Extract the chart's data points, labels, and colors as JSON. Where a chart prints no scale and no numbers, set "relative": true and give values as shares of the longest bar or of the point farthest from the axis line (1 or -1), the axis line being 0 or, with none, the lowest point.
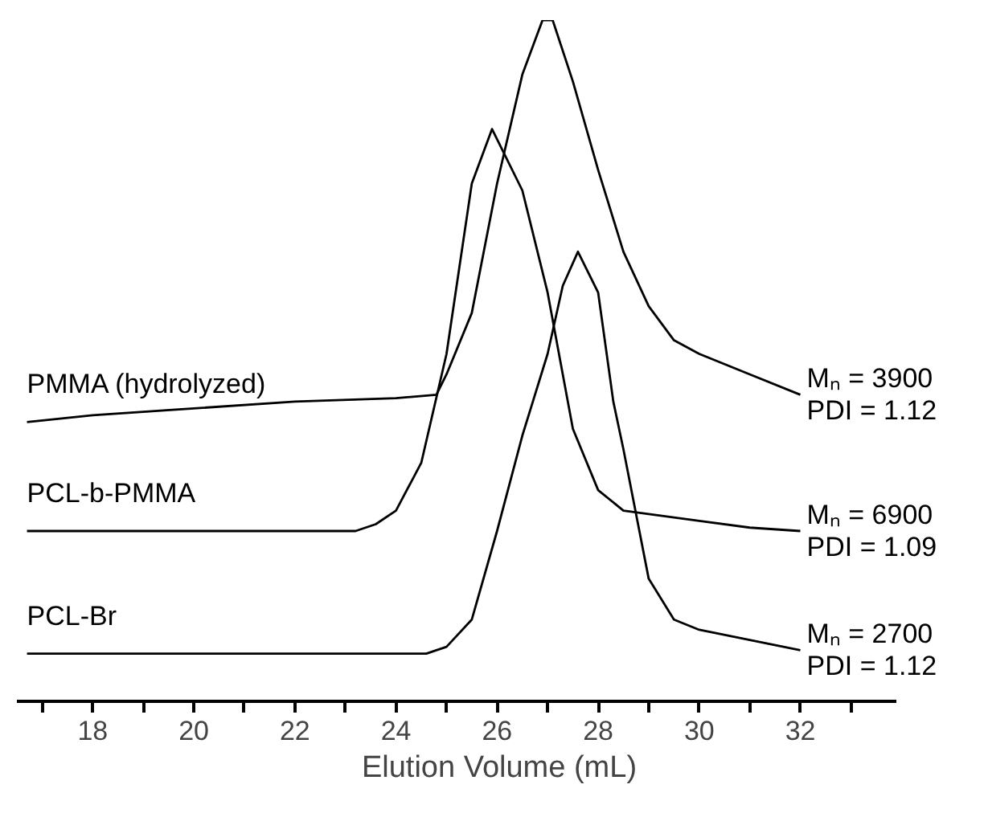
{
  "chart_data": {
    "type": "line",
    "relative": true,
    "xlabel": "Elution Volume (mL)",
    "xlim": [
      16.5,
      33.9
    ],
    "xticks": [
      {
        "value": 17,
        "label": null
      },
      18,
      {
        "value": 19,
        "label": null
      },
      20,
      {
        "value": 21,
        "label": null
      },
      22,
      {
        "value": 23,
        "label": null
      },
      24,
      {
        "value": 25,
        "label": null
      },
      26,
      {
        "value": 27,
        "label": null
      },
      28,
      {
        "value": 29,
        "label": null
      },
      30,
      {
        "value": 31,
        "label": null
      },
      32,
      {
        "value": 33,
        "label": null
      }
    ],
    "grid": false,
    "series": [
      {
        "name": "PMMA (hydrolyzed)",
        "color": "#000000",
        "x": [
          16.7,
          18,
          20,
          22,
          24,
          24.8,
          25,
          25.5,
          26,
          26.5,
          26.9,
          27.1,
          27.5,
          28,
          28.5,
          29,
          29.5,
          30,
          31,
          32
        ],
        "values": [
          0.41,
          0.42,
          0.43,
          0.44,
          0.445,
          0.45,
          0.48,
          0.57,
          0.76,
          0.92,
          1.0,
          1.0,
          0.91,
          0.78,
          0.66,
          0.58,
          0.53,
          0.51,
          0.48,
          0.45
        ]
      },
      {
        "name": "PCL-b-PMMA",
        "color": "#000000",
        "x": [
          16.7,
          20,
          23.2,
          23.6,
          24,
          24.5,
          25,
          25.5,
          25.9,
          26.5,
          27,
          27.5,
          28,
          28.5,
          29,
          30,
          31,
          32
        ],
        "values": [
          0.25,
          0.25,
          0.25,
          0.26,
          0.28,
          0.35,
          0.51,
          0.76,
          0.84,
          0.75,
          0.6,
          0.4,
          0.31,
          0.28,
          0.275,
          0.265,
          0.255,
          0.25
        ]
      },
      {
        "name": "PCL-Br",
        "color": "#000000",
        "x": [
          16.7,
          20,
          24.6,
          25,
          25.5,
          26,
          26.5,
          27,
          27.3,
          27.6,
          28,
          28.3,
          28.5,
          29,
          29.5,
          30,
          31,
          32
        ],
        "values": [
          0.07,
          0.07,
          0.07,
          0.08,
          0.12,
          0.25,
          0.39,
          0.51,
          0.61,
          0.66,
          0.6,
          0.44,
          0.37,
          0.18,
          0.12,
          0.105,
          0.09,
          0.075
        ]
      }
    ],
    "annotations": [
      "Mₙ = 3900\nPDI = 1.12",
      "Mₙ = 6900\nPDI = 1.09",
      "Mₙ = 2700\nPDI = 1.12"
    ]
  }
}
